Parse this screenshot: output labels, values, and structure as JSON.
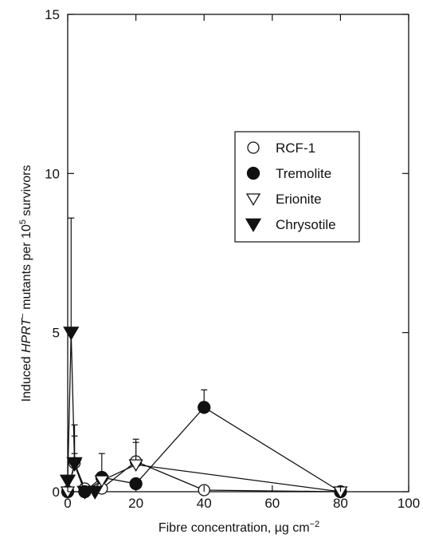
{
  "chart_data": {
    "type": "scatter",
    "xlabel": "Fibre concentration, µg cm",
    "xlabel_sup": "−2",
    "ylabel_parts": [
      "Induced ",
      "HPRT",
      "−",
      " mutants per 10",
      "5",
      " survivors"
    ],
    "xlim": [
      0,
      100
    ],
    "ylim": [
      0,
      15
    ],
    "x_ticks": [
      0,
      20,
      40,
      60,
      80,
      100
    ],
    "y_ticks": [
      0,
      5,
      10,
      15
    ],
    "grid": false,
    "legend_position": "upper-right",
    "series": [
      {
        "name": "RCF-1",
        "marker": "circle-open",
        "points": [
          {
            "x": 0,
            "y": 0,
            "err": 0
          },
          {
            "x": 2,
            "y": 0.9,
            "err": 0.3
          },
          {
            "x": 5,
            "y": 0.1,
            "err": 0
          },
          {
            "x": 10,
            "y": 0.1,
            "err": 0.1
          },
          {
            "x": 20,
            "y": 0.95,
            "err": 0.7
          },
          {
            "x": 40,
            "y": 0.05,
            "err": 0
          },
          {
            "x": 80,
            "y": 0,
            "err": 0
          }
        ]
      },
      {
        "name": "Tremolite",
        "marker": "circle-filled",
        "points": [
          {
            "x": 0,
            "y": 0,
            "err": 0
          },
          {
            "x": 5,
            "y": 0,
            "err": 0
          },
          {
            "x": 10,
            "y": 0.45,
            "err": 0.75
          },
          {
            "x": 20,
            "y": 0.25,
            "err": 0
          },
          {
            "x": 40,
            "y": 2.65,
            "err": 0.55
          },
          {
            "x": 80,
            "y": 0,
            "err": 0
          }
        ]
      },
      {
        "name": "Erionite",
        "marker": "triangle-down-open",
        "points": [
          {
            "x": 0,
            "y": 0,
            "err": 0
          },
          {
            "x": 2,
            "y": 0.85,
            "err": 0.9
          },
          {
            "x": 5,
            "y": 0,
            "err": 0
          },
          {
            "x": 10,
            "y": 0.35,
            "err": 0.2
          },
          {
            "x": 20,
            "y": 0.85,
            "err": 0.7
          },
          {
            "x": 80,
            "y": 0,
            "err": 0
          }
        ]
      },
      {
        "name": "Chrysotile",
        "marker": "triangle-down-filled",
        "points": [
          {
            "x": 0,
            "y": 0.35,
            "err": 0
          },
          {
            "x": 1,
            "y": 5.0,
            "err": 3.6
          },
          {
            "x": 2,
            "y": 0.9,
            "err": 1.2
          },
          {
            "x": 5,
            "y": 0,
            "err": 0
          },
          {
            "x": 8,
            "y": 0,
            "err": 0
          }
        ]
      }
    ]
  }
}
